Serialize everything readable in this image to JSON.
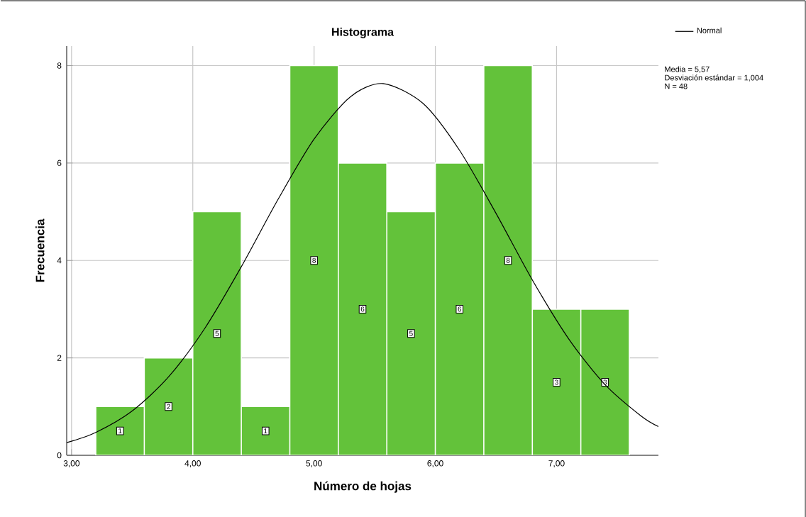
{
  "chart_data": {
    "type": "histogram",
    "title": "Histograma",
    "xlabel": "Número de hojas",
    "ylabel": "Frecuencia",
    "bins": [
      3.2,
      3.6,
      4.0,
      4.4,
      4.8,
      5.2,
      5.6,
      6.0,
      6.4,
      6.8,
      7.2,
      7.6
    ],
    "values": [
      1,
      2,
      5,
      1,
      8,
      6,
      5,
      6,
      8,
      3,
      3
    ],
    "color": "#63c23a",
    "series": [
      {
        "name": "Normal",
        "type": "line",
        "color": "#000000",
        "x": [
          2.96,
          3.2,
          3.5,
          3.8,
          4.1,
          4.4,
          4.7,
          5.0,
          5.3,
          5.57,
          5.9,
          6.2,
          6.5,
          6.8,
          7.1,
          7.4,
          7.7,
          7.84
        ],
        "values": [
          0.26,
          0.47,
          0.91,
          1.61,
          2.61,
          3.87,
          5.24,
          6.49,
          7.36,
          7.63,
          7.22,
          6.26,
          4.97,
          3.6,
          2.39,
          1.45,
          0.8,
          0.59
        ]
      }
    ],
    "value_labels": [
      "1",
      "2",
      "5",
      "1",
      "8",
      "6",
      "5",
      "6",
      "8",
      "3",
      "3"
    ],
    "xlim": [
      2.96,
      7.84
    ],
    "ylim": [
      0,
      8.4
    ],
    "xticks": [
      {
        "value": 3,
        "label": "3,00"
      },
      {
        "value": 4,
        "label": "4,00"
      },
      {
        "value": 5,
        "label": "5,00"
      },
      {
        "value": 6,
        "label": "6,00"
      },
      {
        "value": 7,
        "label": "7,00"
      }
    ],
    "yticks": [
      0,
      2,
      4,
      6,
      8
    ],
    "grid": true,
    "legend": "top right",
    "annotations": [
      "Media = 5,57",
      "Desviación estándar = 1,004",
      "N = 48"
    ]
  }
}
